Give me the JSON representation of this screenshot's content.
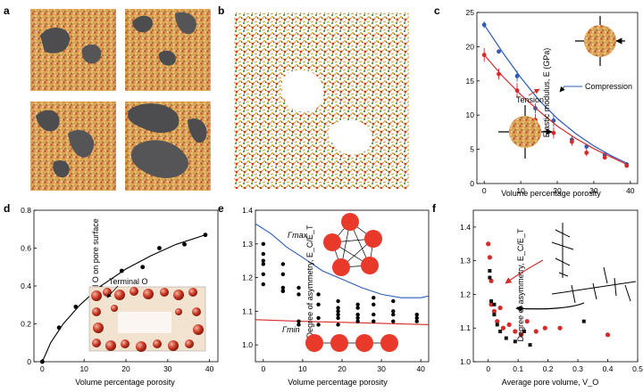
{
  "panels": {
    "a": {
      "letter": "a"
    },
    "b": {
      "letter": "b"
    },
    "c": {
      "letter": "c"
    },
    "d": {
      "letter": "d"
    },
    "e": {
      "letter": "e"
    },
    "f": {
      "letter": "f"
    }
  },
  "chart_data": [
    {
      "panel": "c",
      "type": "line",
      "xlabel": "Volume percentage porosity",
      "ylabel": "Elastic modulus, E (GPa)",
      "xlim": [
        -2,
        42
      ],
      "ylim": [
        0,
        25
      ],
      "xticks": [
        0,
        10,
        20,
        30,
        40
      ],
      "yticks": [
        0,
        5,
        10,
        15,
        20,
        25
      ],
      "annotations": [
        "Compression",
        "Tension"
      ],
      "series": [
        {
          "name": "Compression",
          "color": "#2d5bb5",
          "x": [
            0,
            4,
            9,
            14,
            19,
            24,
            28,
            33,
            39
          ],
          "y": [
            23.2,
            19.3,
            15.7,
            11.0,
            9.2,
            6.4,
            5.4,
            4.2,
            2.8
          ],
          "err": [
            0.5,
            0.3,
            0.8,
            0.7,
            0.9,
            0.5,
            0.4,
            0.3,
            0.2
          ],
          "fit": [
            [
              0,
              23.2
            ],
            [
              5,
              19.2
            ],
            [
              10,
              15.5
            ],
            [
              15,
              12.2
            ],
            [
              20,
              9.5
            ],
            [
              25,
              7.3
            ],
            [
              30,
              5.5
            ],
            [
              35,
              4.0
            ],
            [
              39,
              3.0
            ]
          ]
        },
        {
          "name": "Tension",
          "color": "#d42a2a",
          "x": [
            0,
            4,
            9,
            14,
            19,
            24,
            28,
            33,
            39
          ],
          "y": [
            18.8,
            16.0,
            13.6,
            9.3,
            7.4,
            6.1,
            4.5,
            3.8,
            2.6
          ],
          "err": [
            1.0,
            0.8,
            1.1,
            0.9,
            0.8,
            0.6,
            0.5,
            0.3,
            0.2
          ],
          "fit": [
            [
              0,
              18.8
            ],
            [
              5,
              15.7
            ],
            [
              10,
              13.0
            ],
            [
              15,
              10.6
            ],
            [
              20,
              8.4
            ],
            [
              25,
              6.6
            ],
            [
              30,
              5.1
            ],
            [
              35,
              3.8
            ],
            [
              39,
              2.8
            ]
          ]
        }
      ]
    },
    {
      "panel": "d",
      "type": "scatter",
      "xlabel": "Volume percentage porosity",
      "ylabel": "Fraction terminal O on pore surface",
      "xlim": [
        -2,
        42
      ],
      "ylim": [
        0,
        0.8
      ],
      "xticks": [
        0,
        10,
        20,
        30,
        40
      ],
      "yticks": [
        0,
        0.2,
        0.4,
        0.6,
        0.8
      ],
      "annotations": [
        "Terminal O"
      ],
      "series": [
        {
          "name": "data",
          "color": "#000000",
          "x": [
            0,
            4,
            8,
            14,
            19,
            24,
            28,
            34,
            39
          ],
          "y": [
            0.0,
            0.18,
            0.29,
            0.39,
            0.48,
            0.5,
            0.6,
            0.62,
            0.67
          ],
          "fit": [
            [
              0,
              0.0
            ],
            [
              2,
              0.1
            ],
            [
              5,
              0.2
            ],
            [
              9,
              0.3
            ],
            [
              14,
              0.4
            ],
            [
              20,
              0.49
            ],
            [
              26,
              0.56
            ],
            [
              32,
              0.62
            ],
            [
              39,
              0.67
            ]
          ]
        }
      ]
    },
    {
      "panel": "e",
      "type": "scatter",
      "xlabel": "Volume percentage porosity",
      "ylabel": "Degree of asymmetry, E_C/E_T",
      "xlim": [
        -2,
        42
      ],
      "ylim": [
        0.95,
        1.4
      ],
      "xticks": [
        0,
        10,
        20,
        30,
        40
      ],
      "yticks": [
        1.0,
        1.1,
        1.2,
        1.3,
        1.4
      ],
      "annotations": [
        "Γmax",
        "Γmin"
      ],
      "series": [
        {
          "name": "data",
          "color": "#000000",
          "x": [
            0,
            0,
            0,
            0,
            0,
            0,
            5,
            5,
            5,
            5,
            5,
            9,
            9,
            9,
            9,
            14,
            14,
            14,
            14,
            19,
            19,
            19,
            19,
            19,
            19,
            24,
            24,
            24,
            24,
            24,
            28,
            28,
            28,
            28,
            33,
            33,
            33,
            33,
            39,
            39,
            39
          ],
          "y": [
            1.3,
            1.27,
            1.25,
            1.24,
            1.21,
            1.18,
            1.24,
            1.21,
            1.17,
            1.16,
            1.16,
            1.17,
            1.15,
            1.07,
            1.06,
            1.15,
            1.12,
            1.08,
            1.06,
            1.13,
            1.11,
            1.1,
            1.09,
            1.08,
            1.06,
            1.12,
            1.11,
            1.09,
            1.08,
            1.07,
            1.14,
            1.12,
            1.09,
            1.07,
            1.13,
            1.1,
            1.09,
            1.07,
            1.09,
            1.08,
            1.07
          ]
        },
        {
          "name": "Γmax",
          "color": "#2d5bb5",
          "fit": [
            [
              -2,
              1.36
            ],
            [
              2,
              1.33
            ],
            [
              6,
              1.29
            ],
            [
              10,
              1.26
            ],
            [
              15,
              1.22
            ],
            [
              20,
              1.195
            ],
            [
              25,
              1.17
            ],
            [
              30,
              1.15
            ],
            [
              35,
              1.14
            ],
            [
              40,
              1.14
            ],
            [
              42,
              1.145
            ]
          ]
        },
        {
          "name": "Γmin",
          "color": "#d42a2a",
          "fit": [
            [
              -2,
              1.075
            ],
            [
              10,
              1.07
            ],
            [
              20,
              1.067
            ],
            [
              30,
              1.064
            ],
            [
              42,
              1.06
            ]
          ]
        }
      ]
    },
    {
      "panel": "f",
      "type": "scatter",
      "xlabel": "Average pore volume, V_O",
      "ylabel": "Degree of asymmetry, E_C/E_T",
      "xlim": [
        -0.05,
        0.5
      ],
      "ylim": [
        1.0,
        1.45
      ],
      "xticks": [
        0.0,
        0.1,
        0.2,
        0.3,
        0.4,
        0.5
      ],
      "yticks": [
        1.0,
        1.1,
        1.2,
        1.3,
        1.4
      ],
      "series": [
        {
          "name": "red",
          "color": "#d42a2a",
          "x": [
            0.0,
            0.005,
            0.01,
            0.01,
            0.02,
            0.03,
            0.04,
            0.05,
            0.07,
            0.09,
            0.11,
            0.13,
            0.16,
            0.19,
            0.24,
            0.4
          ],
          "y": [
            1.35,
            1.31,
            1.24,
            1.17,
            1.15,
            1.12,
            1.16,
            1.1,
            1.11,
            1.09,
            1.08,
            1.12,
            1.09,
            1.1,
            1.1,
            1.08
          ]
        },
        {
          "name": "black",
          "color": "#111111",
          "x": [
            0.005,
            0.005,
            0.01,
            0.02,
            0.02,
            0.03,
            0.04,
            0.06,
            0.09,
            0.12,
            0.14,
            0.32
          ],
          "y": [
            1.27,
            1.25,
            1.18,
            1.17,
            1.14,
            1.11,
            1.09,
            1.07,
            1.06,
            1.09,
            1.05,
            1.12
          ]
        }
      ]
    }
  ]
}
